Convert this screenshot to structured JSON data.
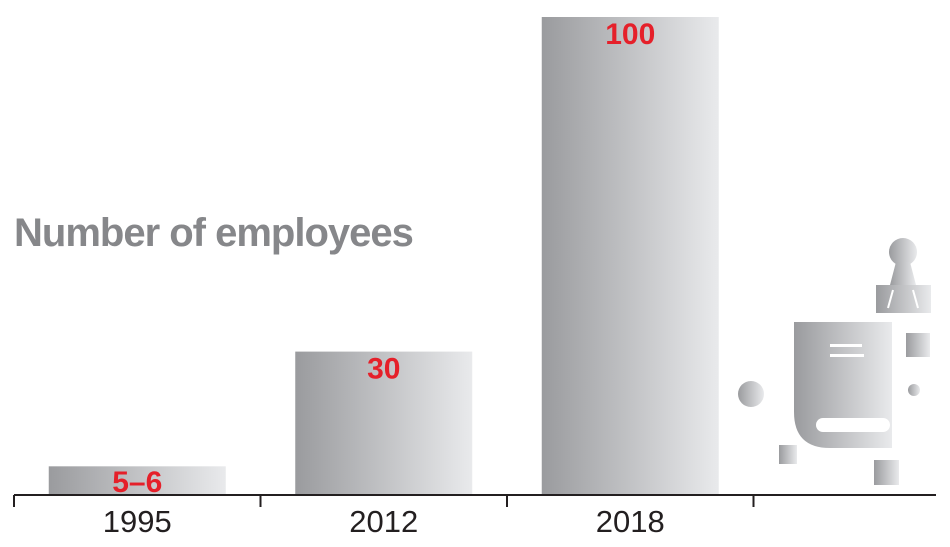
{
  "chart_data": {
    "type": "bar",
    "title": "Number of employees",
    "xlabel": "",
    "ylabel": "",
    "categories": [
      "1995",
      "2012",
      "2018"
    ],
    "values": [
      6,
      30,
      100
    ],
    "value_labels": [
      "5–6",
      "30",
      "100"
    ],
    "ylim": [
      0,
      100
    ],
    "grid": false,
    "legend": "none"
  },
  "colors": {
    "bar_dark": "#9a9b9e",
    "bar_light": "#e9eaec",
    "value_label": "#e5202a",
    "title": "#86878a",
    "axis": "#231f20",
    "tick_text": "#231f20",
    "illustration": "#b8b9bc"
  },
  "decoration": {
    "icon": "office-building-icon"
  }
}
